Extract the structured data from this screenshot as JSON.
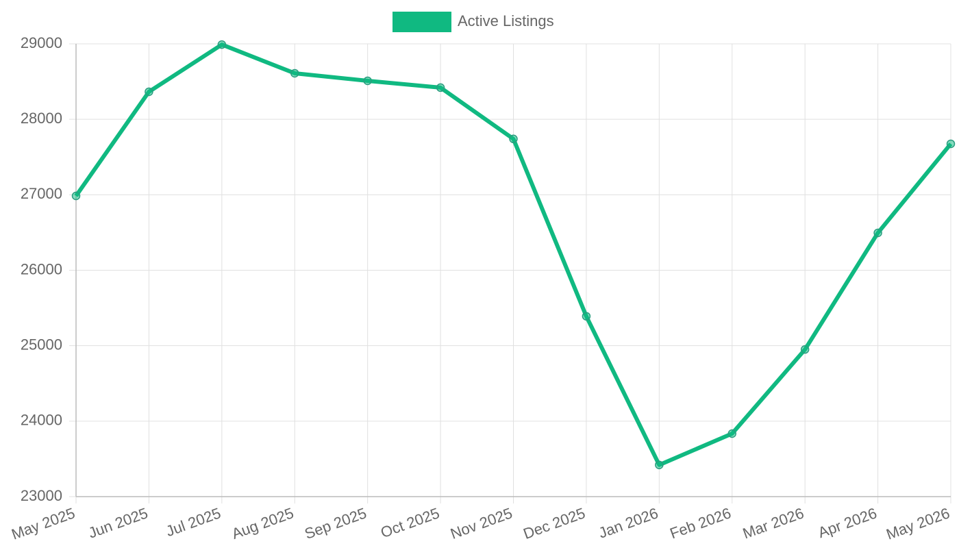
{
  "chart_data": {
    "type": "line",
    "categories": [
      "May 2025",
      "Jun 2025",
      "Jul 2025",
      "Aug 2025",
      "Sep 2025",
      "Oct 2025",
      "Nov 2025",
      "Dec 2025",
      "Jan 2026",
      "Feb 2026",
      "Mar 2026",
      "Apr 2026",
      "May 2026"
    ],
    "series": [
      {
        "name": "Active Listings",
        "color": "#10b981",
        "values": [
          26985,
          28365,
          28990,
          28610,
          28510,
          28420,
          27740,
          25390,
          23420,
          23835,
          24950,
          26495,
          27675
        ]
      }
    ],
    "ylim": [
      23000,
      29000
    ],
    "yticks": [
      23000,
      24000,
      25000,
      26000,
      27000,
      28000,
      29000
    ],
    "grid": true,
    "legend": "top"
  }
}
